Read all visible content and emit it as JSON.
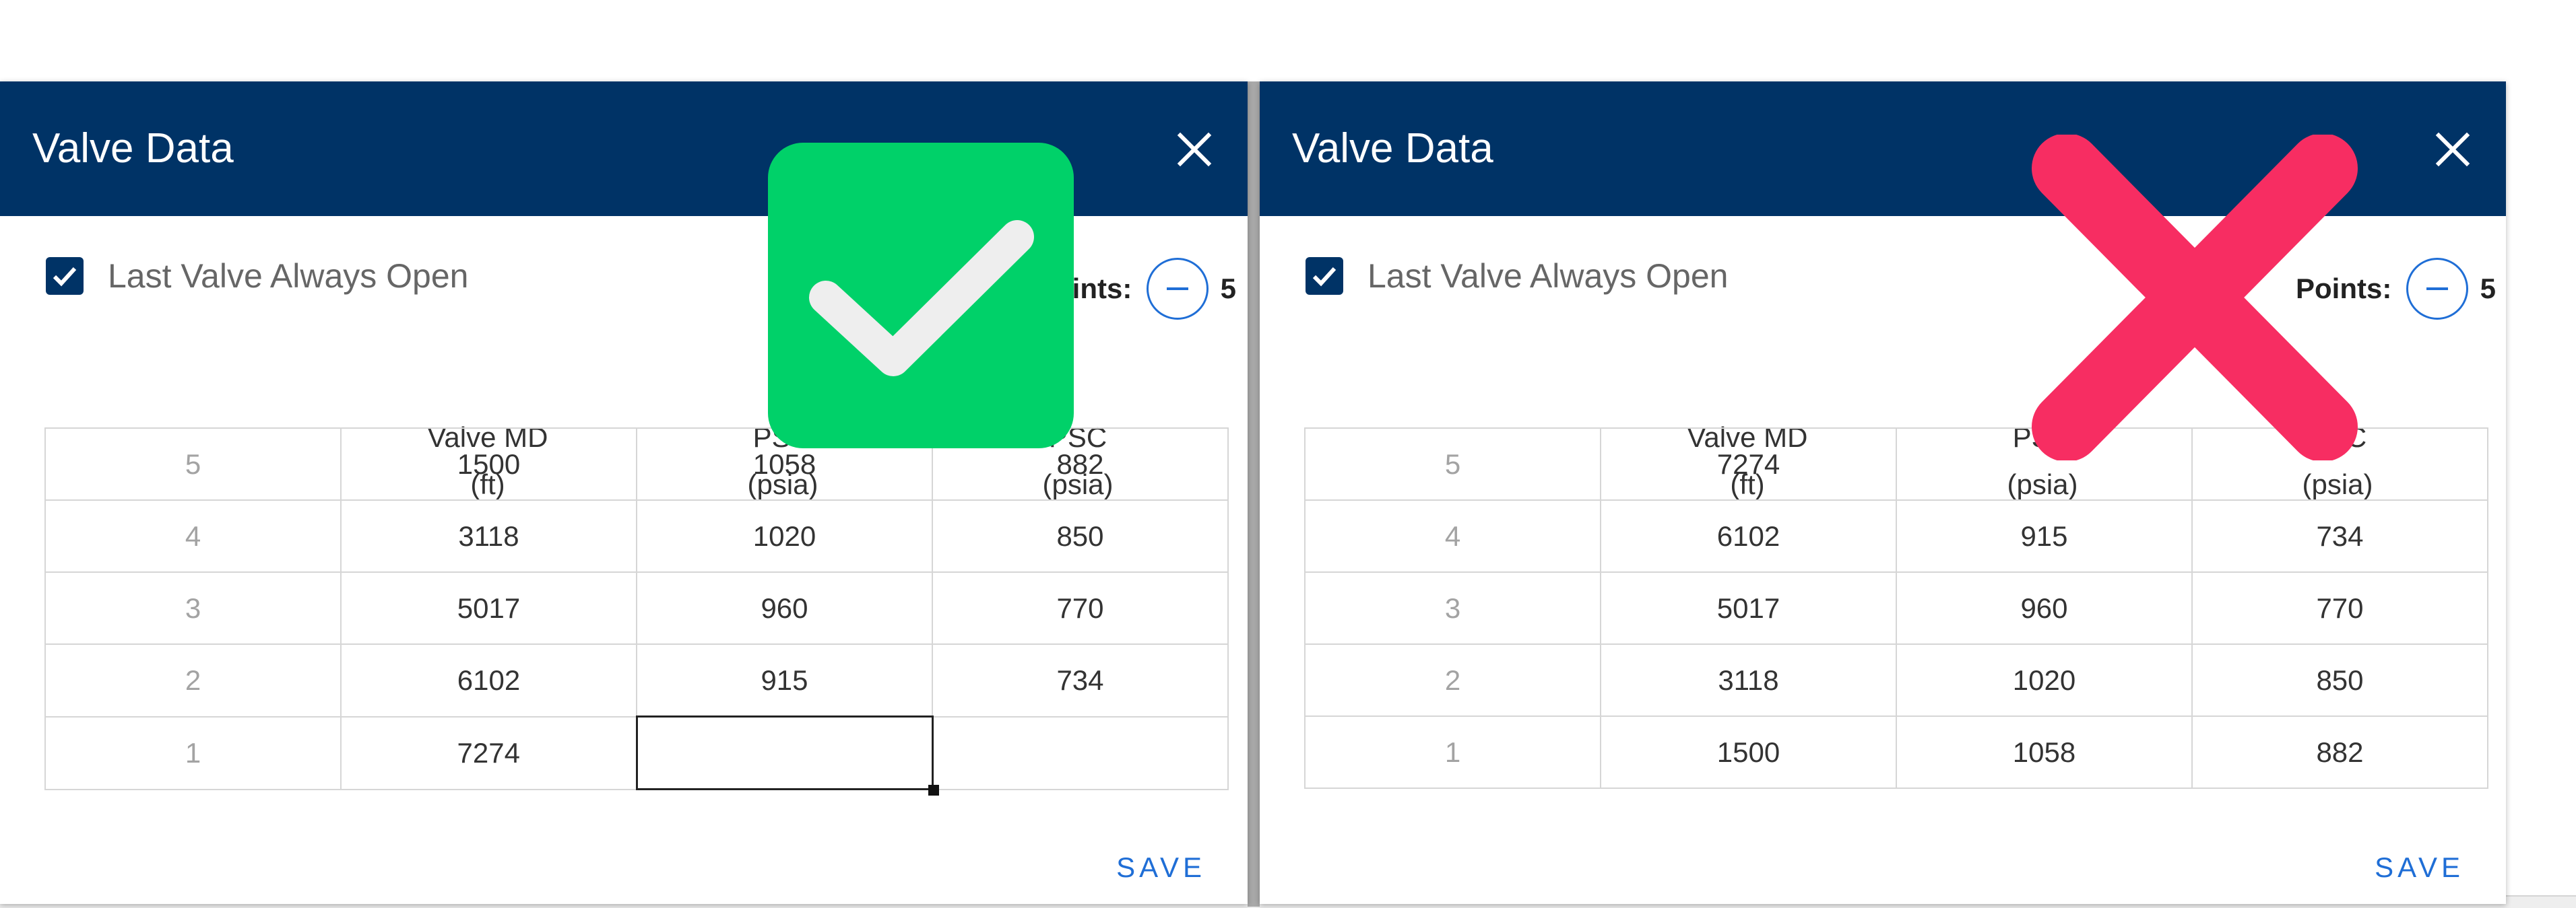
{
  "panels": [
    {
      "title": "Valve Data",
      "checkbox_label": "Last Valve Always Open",
      "stepper": {
        "label": "Points:",
        "value": "5"
      },
      "columns": [
        {
          "name": "Valve MD",
          "unit": "(ft)"
        },
        {
          "name": "PSO",
          "unit": "(psia)"
        },
        {
          "name": "PSC",
          "unit": "(psia)"
        }
      ],
      "rows": [
        {
          "index": "5",
          "md": "1500",
          "pso": "1058",
          "psc": "882"
        },
        {
          "index": "4",
          "md": "3118",
          "pso": "1020",
          "psc": "850"
        },
        {
          "index": "3",
          "md": "5017",
          "pso": "960",
          "psc": "770"
        },
        {
          "index": "2",
          "md": "6102",
          "pso": "915",
          "psc": "734"
        },
        {
          "index": "1",
          "md": "7274",
          "pso": "",
          "psc": ""
        }
      ],
      "save_label": "SAVE",
      "overlay": "check-mark"
    },
    {
      "title": "Valve Data",
      "checkbox_label": "Last Valve Always Open",
      "stepper": {
        "label": "Points:",
        "value": "5"
      },
      "columns": [
        {
          "name": "Valve MD",
          "unit": "(ft)"
        },
        {
          "name": "PSO",
          "unit": "(psia)"
        },
        {
          "name": "PSC",
          "unit": "(psia)"
        }
      ],
      "rows": [
        {
          "index": "5",
          "md": "7274",
          "pso": "",
          "psc": ""
        },
        {
          "index": "4",
          "md": "6102",
          "pso": "915",
          "psc": "734"
        },
        {
          "index": "3",
          "md": "5017",
          "pso": "960",
          "psc": "770"
        },
        {
          "index": "2",
          "md": "3118",
          "pso": "1020",
          "psc": "850"
        },
        {
          "index": "1",
          "md": "1500",
          "pso": "1058",
          "psc": "882"
        }
      ],
      "save_label": "SAVE",
      "overlay": "cross-mark"
    }
  ],
  "colors": {
    "header": "#003366",
    "accent": "#1f6ed6",
    "correct": "#00d169",
    "wrong": "#f72d62"
  }
}
